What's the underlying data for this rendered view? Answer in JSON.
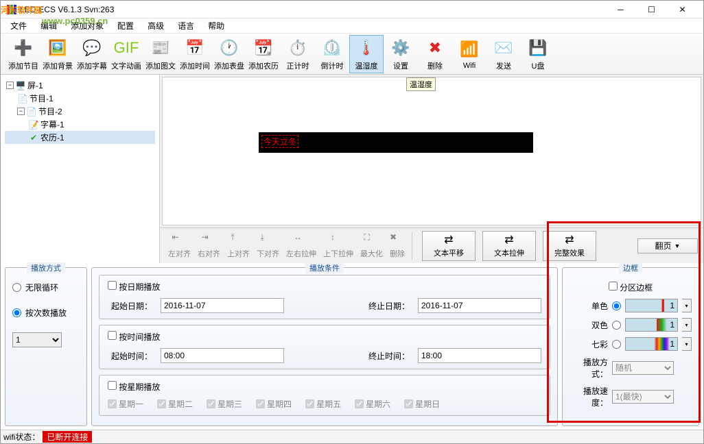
{
  "title": "LED-ECS V6.1.3 Svn:263",
  "watermark": {
    "l1": "河东软件园",
    "l2": "www.pc0359.cn"
  },
  "menu": [
    "文件",
    "编辑",
    "添加对象",
    "配置",
    "高级",
    "语言",
    "帮助"
  ],
  "toolbar": [
    {
      "label": "添加节目",
      "color": "#3b82f6"
    },
    {
      "label": "添加背景",
      "color": "#10b981"
    },
    {
      "label": "添加字幕",
      "color": "#2563eb"
    },
    {
      "label": "文字动画",
      "color": "#84cc16"
    },
    {
      "label": "添加图文",
      "color": "#f97316"
    },
    {
      "label": "添加时间",
      "color": "#3b82f6"
    },
    {
      "label": "添加表盘",
      "color": "#9333ea"
    },
    {
      "label": "添加农历",
      "color": "#dc2626"
    },
    {
      "label": "正计时",
      "color": "#9333ea"
    },
    {
      "label": "倒计时",
      "color": "#1e40af"
    },
    {
      "label": "温湿度",
      "color": "#dc2626",
      "active": true
    },
    {
      "label": "设置",
      "color": "#6b7280"
    },
    {
      "label": "删除",
      "color": "#dc2626"
    },
    {
      "label": "Wifi",
      "color": "#6b7280"
    },
    {
      "label": "发送",
      "color": "#fbbf24"
    },
    {
      "label": "U盘",
      "color": "#ec4899"
    }
  ],
  "tooltip": "温湿度",
  "tree": {
    "screen": "屏-1",
    "prog1": "节目-1",
    "prog2": "节目-2",
    "sub1": "字幕-1",
    "sub2": "农历-1"
  },
  "ledText": "今天立冬",
  "alignBar": [
    "左对齐",
    "右对齐",
    "上对齐",
    "下对齐",
    "左右拉伸",
    "上下拉伸",
    "最大化",
    "删除"
  ],
  "bigBtns": [
    "文本平移",
    "文本拉伸",
    "完整效果"
  ],
  "flip": "翻页",
  "panels": {
    "playMode": {
      "title": "播放方式",
      "opt1": "无限循环",
      "opt2": "按次数播放",
      "count": "1"
    },
    "playCond": {
      "title": "播放条件",
      "byDate": "按日期播放",
      "startDate": "起始日期：",
      "startDateV": "2016-11-07",
      "endDate": "终止日期：",
      "endDateV": "2016-11-07",
      "byTime": "按时间播放",
      "startTime": "起始时间：",
      "startTimeV": "08:00",
      "endTime": "终止时间：",
      "endTimeV": "18:00",
      "byWeek": "按星期播放",
      "weekdays": [
        "星期一",
        "星期二",
        "星期三",
        "星期四",
        "星期五",
        "星期六",
        "星期日"
      ]
    },
    "border": {
      "title": "边框",
      "zone": "分区边框",
      "single": "单色",
      "singleV": "1",
      "double": "双色",
      "doubleV": "1",
      "rainbow": "七彩",
      "rainbowV": "1",
      "playMode": "播放方式：",
      "playModeV": "随机",
      "playSpeed": "播放速度：",
      "playSpeedV": "1(最快)"
    }
  },
  "status": {
    "label": "wifi状态：",
    "value": "已断开连接"
  }
}
